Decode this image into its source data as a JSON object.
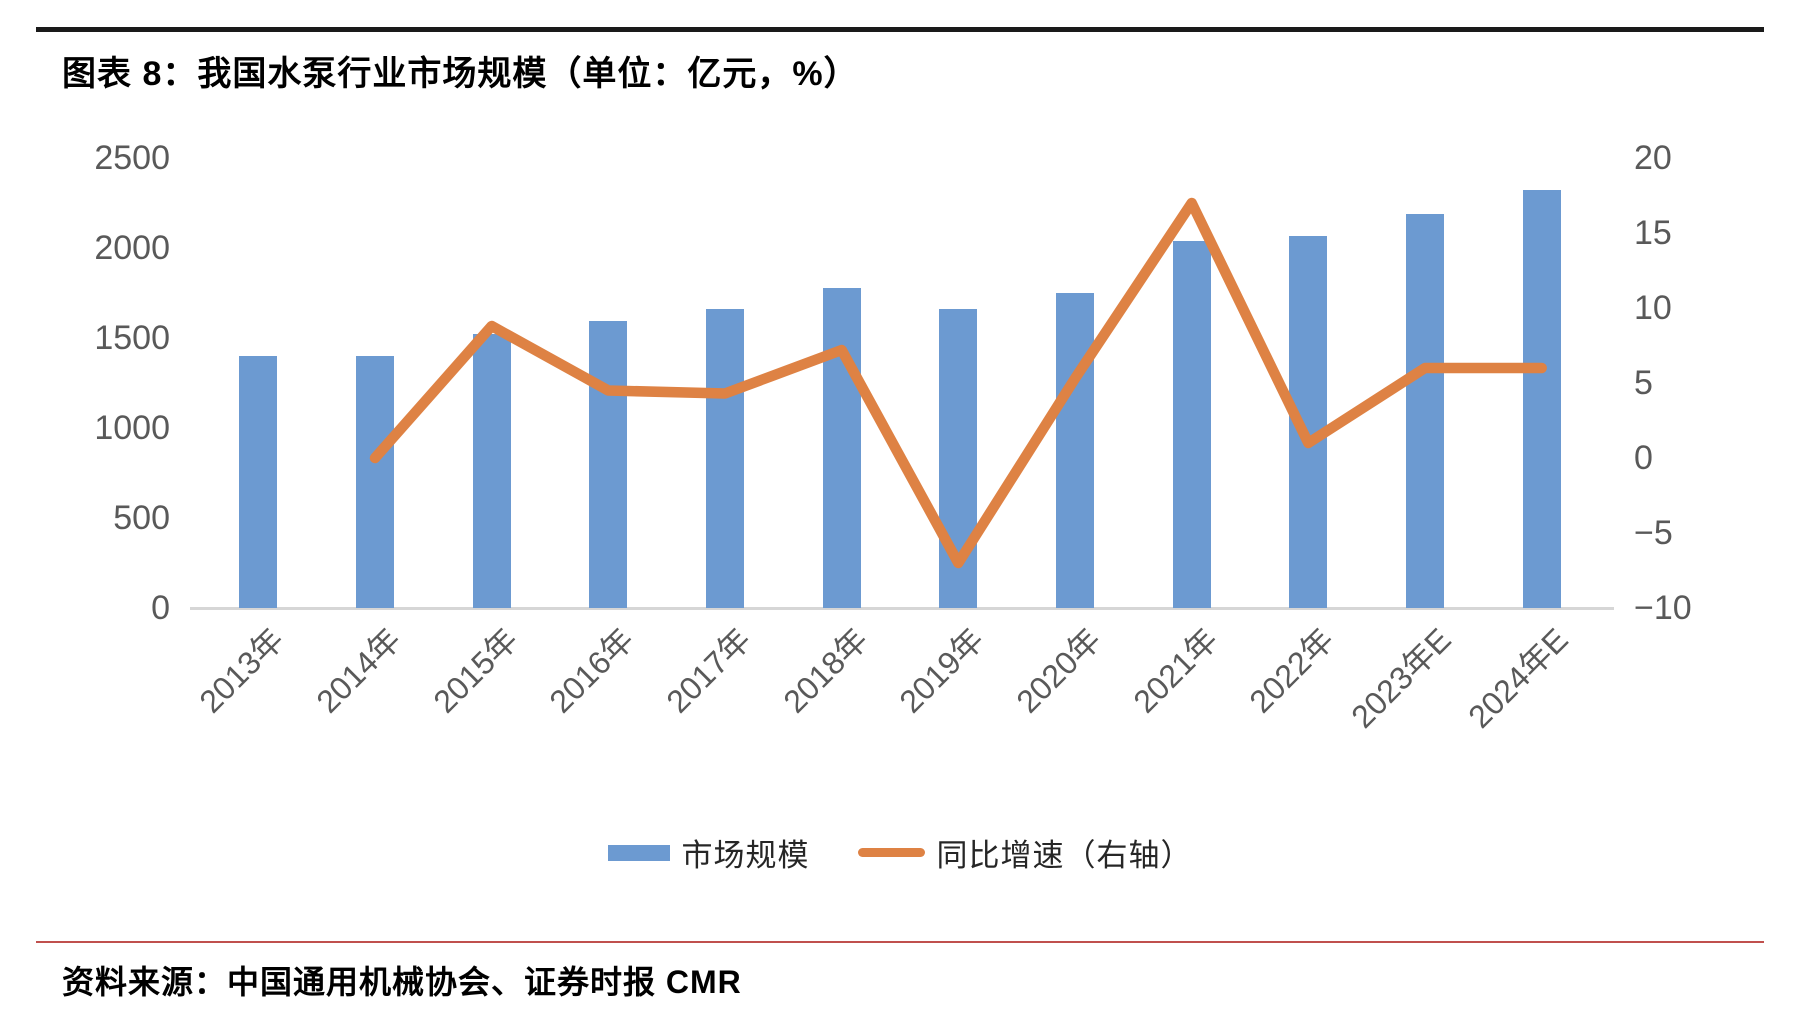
{
  "page": {
    "title": "图表 8：我国水泵行业市场规模（单位：亿元，%）",
    "source": "资料来源：中国通用机械协会、证券时报 CMR"
  },
  "colors": {
    "bar": "#6C9AD1",
    "line": "#DE8244",
    "axis_text": "#595959",
    "axis_line": "#D6D6D6",
    "top_rule": "#1A1A1A",
    "divider": "#C0504D"
  },
  "chart_data": {
    "type": "bar+line",
    "title": "图表 8：我国水泵行业市场规模（单位：亿元，%）",
    "categories": [
      "2013年",
      "2014年",
      "2015年",
      "2016年",
      "2017年",
      "2018年",
      "2019年",
      "2020年",
      "2021年",
      "2022年",
      "2023年E",
      "2024年E"
    ],
    "series": [
      {
        "name": "市场规模",
        "type": "bar",
        "axis": "left",
        "unit": "亿元",
        "values": [
          1400,
          1400,
          1525,
          1595,
          1660,
          1780,
          1660,
          1750,
          2040,
          2065,
          2190,
          2320
        ]
      },
      {
        "name": "同比增速（右轴）",
        "type": "line",
        "axis": "right",
        "unit": "%",
        "values": [
          null,
          0,
          8.8,
          4.5,
          4.3,
          7.2,
          -7,
          5.3,
          17,
          1,
          6,
          6
        ]
      }
    ],
    "left_axis": {
      "min": 0,
      "max": 2500,
      "ticks": [
        2500,
        2000,
        1500,
        1000,
        500,
        0
      ]
    },
    "right_axis": {
      "min": -10,
      "max": 20,
      "ticks": [
        20,
        15,
        10,
        5,
        0,
        -5,
        -10
      ]
    },
    "grid": false,
    "legend_position": "bottom"
  }
}
